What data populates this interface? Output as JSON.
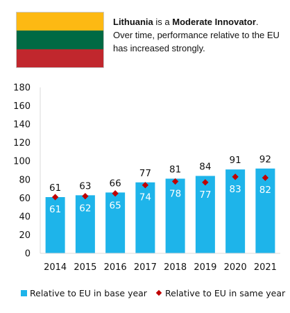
{
  "country": {
    "name": "Lithuania",
    "flag_colors": [
      "#fdb913",
      "#006a44",
      "#c1272d"
    ]
  },
  "intro": {
    "country_label": "Lithuania",
    "is_a": " is a ",
    "group": "Moderate Innovator",
    "period": ".",
    "sentence": "Over time, performance relative to the EU has increased strongly."
  },
  "colors": {
    "bar": "#1eb4ea",
    "marker": "#c00000",
    "bar_label": "#ffffff",
    "text": "#111111",
    "grid": "#d9d9d9"
  },
  "chart_data": {
    "type": "bar",
    "categories": [
      "2014",
      "2015",
      "2016",
      "2017",
      "2018",
      "2019",
      "2020",
      "2021"
    ],
    "series": [
      {
        "name": "Relative to EU in base year",
        "type": "bar",
        "values": [
          61,
          63,
          66,
          77,
          81,
          84,
          91,
          92
        ]
      },
      {
        "name": "Relative to EU in same year",
        "type": "marker",
        "marker": "diamond",
        "values": [
          61,
          62,
          65,
          74,
          78,
          77,
          83,
          82
        ]
      }
    ],
    "ylim": [
      0,
      180
    ],
    "yticks": [
      0,
      20,
      40,
      60,
      80,
      100,
      120,
      140,
      160,
      180
    ],
    "legend_position": "bottom",
    "grid": false
  },
  "legend": {
    "base_year": "Relative to EU in base year",
    "same_year": "Relative to EU in same year"
  }
}
